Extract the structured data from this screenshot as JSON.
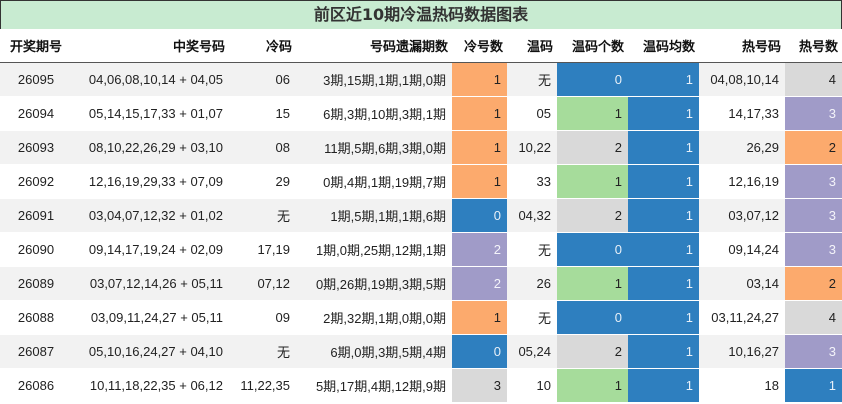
{
  "title": "前区近10期冷温热码数据图表",
  "headers": [
    "开奖期号",
    "中奖号码",
    "冷码",
    "号码遗漏期数",
    "冷号数",
    "温码",
    "温码个数",
    "温码均数",
    "热号码",
    "热号数"
  ],
  "rows": [
    {
      "period": "26095",
      "numbers": "04,06,08,10,14 + 04,05",
      "cold": "06",
      "miss": "3期,15期,1期,1期,0期",
      "cold_count": "1",
      "warm": "无",
      "warm_count": "0",
      "warm_avg": "1",
      "hot": "04,08,10,14",
      "hot_count": "4"
    },
    {
      "period": "26094",
      "numbers": "05,14,15,17,33 + 01,07",
      "cold": "15",
      "miss": "6期,3期,10期,3期,1期",
      "cold_count": "1",
      "warm": "05",
      "warm_count": "1",
      "warm_avg": "1",
      "hot": "14,17,33",
      "hot_count": "3"
    },
    {
      "period": "26093",
      "numbers": "08,10,22,26,29 + 03,10",
      "cold": "08",
      "miss": "11期,5期,6期,3期,0期",
      "cold_count": "1",
      "warm": "10,22",
      "warm_count": "2",
      "warm_avg": "1",
      "hot": "26,29",
      "hot_count": "2"
    },
    {
      "period": "26092",
      "numbers": "12,16,19,29,33 + 07,09",
      "cold": "29",
      "miss": "0期,4期,1期,19期,7期",
      "cold_count": "1",
      "warm": "33",
      "warm_count": "1",
      "warm_avg": "1",
      "hot": "12,16,19",
      "hot_count": "3"
    },
    {
      "period": "26091",
      "numbers": "03,04,07,12,32 + 01,02",
      "cold": "无",
      "miss": "1期,5期,1期,1期,6期",
      "cold_count": "0",
      "warm": "04,32",
      "warm_count": "2",
      "warm_avg": "1",
      "hot": "03,07,12",
      "hot_count": "3"
    },
    {
      "period": "26090",
      "numbers": "09,14,17,19,24 + 02,09",
      "cold": "17,19",
      "miss": "1期,0期,25期,12期,1期",
      "cold_count": "2",
      "warm": "无",
      "warm_count": "0",
      "warm_avg": "1",
      "hot": "09,14,24",
      "hot_count": "3"
    },
    {
      "period": "26089",
      "numbers": "03,07,12,14,26 + 05,11",
      "cold": "07,12",
      "miss": "0期,26期,19期,3期,5期",
      "cold_count": "2",
      "warm": "26",
      "warm_count": "1",
      "warm_avg": "1",
      "hot": "03,14",
      "hot_count": "2"
    },
    {
      "period": "26088",
      "numbers": "03,09,11,24,27 + 05,11",
      "cold": "09",
      "miss": "2期,32期,1期,0期,0期",
      "cold_count": "1",
      "warm": "无",
      "warm_count": "0",
      "warm_avg": "1",
      "hot": "03,11,24,27",
      "hot_count": "4"
    },
    {
      "period": "26087",
      "numbers": "05,10,16,24,27 + 04,10",
      "cold": "无",
      "miss": "6期,0期,3期,5期,4期",
      "cold_count": "0",
      "warm": "05,24",
      "warm_count": "2",
      "warm_avg": "1",
      "hot": "10,16,27",
      "hot_count": "3"
    },
    {
      "period": "26086",
      "numbers": "10,11,18,22,35 + 06,12",
      "cold": "11,22,35",
      "miss": "5期,17期,4期,12期,9期",
      "cold_count": "3",
      "warm": "10",
      "warm_count": "1",
      "warm_avg": "1",
      "hot": "18",
      "hot_count": "1"
    }
  ],
  "colors": {
    "title_bg": "#c8ebd1",
    "orange": "#fcaa6d",
    "blue": "#2e7fbf",
    "purple": "#a09bc8",
    "gray": "#d9d9d9",
    "green": "#a6dc9b"
  }
}
